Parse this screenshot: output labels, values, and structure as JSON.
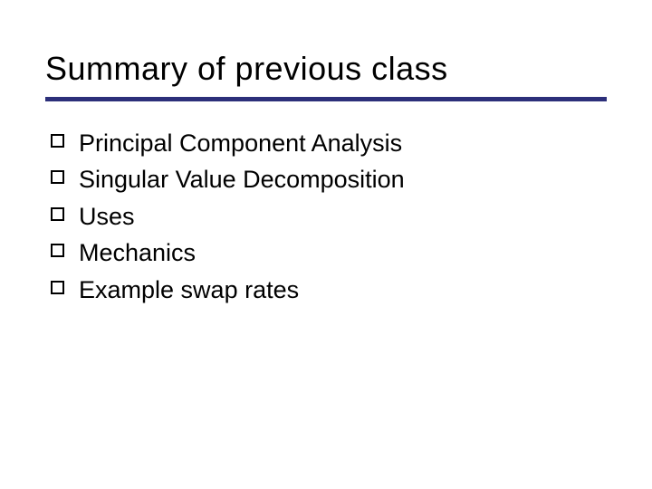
{
  "slide": {
    "title": "Summary of previous class",
    "title_fontsize": 36,
    "title_color": "#000000",
    "underline_color": "#2c2f7a",
    "underline_height": 5,
    "background_color": "#ffffff",
    "bullets": [
      {
        "text": "Principal Component Analysis"
      },
      {
        "text": "Singular Value Decomposition"
      },
      {
        "text": "Uses"
      },
      {
        "text": "Mechanics"
      },
      {
        "text": "Example swap rates"
      }
    ],
    "bullet_fontsize": 27,
    "bullet_color": "#000000",
    "bullet_marker": {
      "type": "hollow-square",
      "size": 15,
      "border_width": 2,
      "border_color": "#000000"
    }
  }
}
